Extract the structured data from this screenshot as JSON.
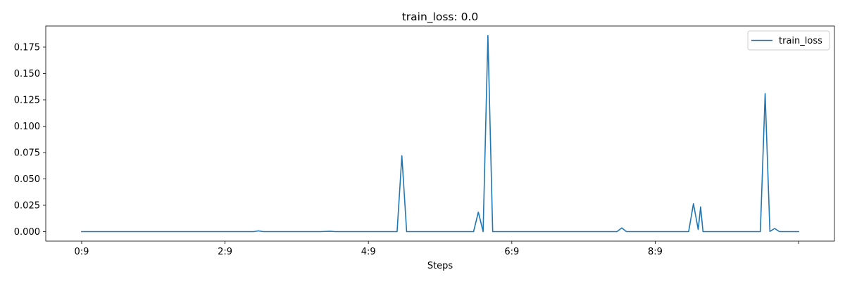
{
  "chart_data": {
    "type": "line",
    "title": "train_loss: 0.0",
    "xlabel": "Steps",
    "ylabel": "",
    "x_range": [
      -7.5,
      157.5
    ],
    "ylim": [
      -0.009,
      0.195
    ],
    "x_ticks": [
      {
        "value": 0,
        "label": "0:9"
      },
      {
        "value": 30,
        "label": "2:9"
      },
      {
        "value": 60,
        "label": "4:9"
      },
      {
        "value": 90,
        "label": "6:9"
      },
      {
        "value": 120,
        "label": "8:9"
      },
      {
        "value": 150,
        "label": ""
      }
    ],
    "y_ticks": [
      {
        "value": 0.0,
        "label": "0.000"
      },
      {
        "value": 0.025,
        "label": "0.025"
      },
      {
        "value": 0.05,
        "label": "0.050"
      },
      {
        "value": 0.075,
        "label": "0.075"
      },
      {
        "value": 0.1,
        "label": "0.100"
      },
      {
        "value": 0.125,
        "label": "0.125"
      },
      {
        "value": 0.15,
        "label": "0.150"
      },
      {
        "value": 0.175,
        "label": "0.175"
      }
    ],
    "grid": false,
    "legend_position": "top-right",
    "series": [
      {
        "name": "train_loss",
        "color": "#1f77b4",
        "x": [
          0,
          10,
          20,
          30,
          36,
          37,
          38,
          40,
          50,
          52,
          53,
          60,
          66,
          67,
          68,
          69,
          70,
          72,
          80,
          81,
          82,
          83,
          84,
          85,
          86,
          88,
          90,
          100,
          110,
          112,
          113,
          114,
          120,
          127,
          128,
          129,
          129.5,
          130,
          131,
          132,
          140,
          142,
          143,
          144,
          145,
          146,
          150
        ],
        "y": [
          0,
          0,
          0,
          0,
          0,
          0.0007,
          0,
          0,
          0,
          0.0004,
          0,
          0,
          0,
          0.072,
          0,
          0,
          0,
          0,
          0,
          0,
          0,
          0.0185,
          0,
          0.186,
          0,
          0,
          0,
          0,
          0,
          0,
          0.0035,
          0,
          0,
          0,
          0.0265,
          0.002,
          0.0235,
          0,
          0,
          0,
          0,
          0,
          0.131,
          0.0002,
          0.003,
          0,
          0
        ]
      }
    ]
  }
}
